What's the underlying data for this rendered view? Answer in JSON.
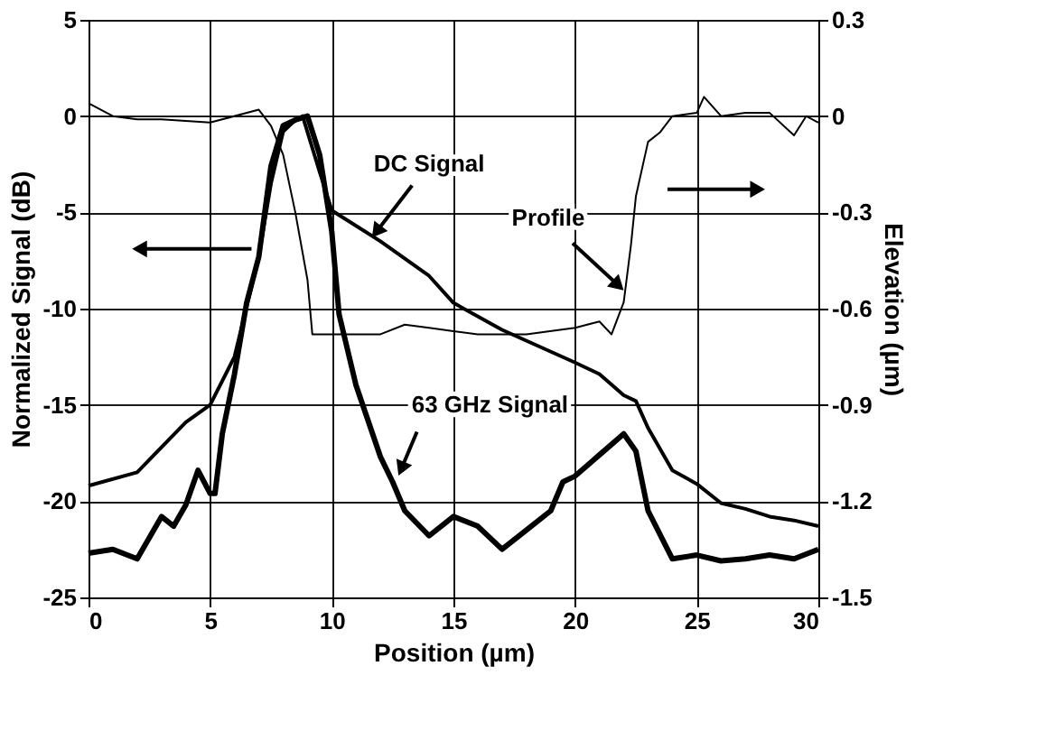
{
  "chart_data": {
    "type": "line",
    "xlabel": "Position (µm)",
    "ylabel": "Normalized Signal (dB)",
    "y2label": "Elevation (µm)",
    "xlim": [
      0,
      30
    ],
    "xticks": [
      0,
      5,
      10,
      15,
      20,
      25,
      30
    ],
    "ylim": [
      -25,
      5
    ],
    "yticks": [
      -25,
      -20,
      -15,
      -10,
      -5,
      0,
      5
    ],
    "y2lim": [
      -1.5,
      0.3
    ],
    "y2ticks": [
      -1.5,
      -1.2,
      -0.9,
      -0.6,
      -0.3,
      0,
      0.3
    ],
    "grid": true,
    "marker": "none",
    "line_style": "solid",
    "annotations": [
      {
        "text": "DC Signal",
        "x": 11.9,
        "y": -5.9
      },
      {
        "text": "Profile",
        "x": 21.7,
        "y": -8.7
      },
      {
        "text": "63 GHz Signal",
        "x": 12.9,
        "y": -18.2
      }
    ],
    "series": [
      {
        "color": "#000000",
        "x": [
          0,
          2,
          4,
          5,
          6,
          7,
          7.5,
          8,
          8.5,
          8.8,
          9.5,
          10,
          12,
          14,
          15,
          17,
          20,
          21,
          22,
          22.5,
          23,
          24,
          25,
          26,
          27,
          28,
          29,
          30
        ],
        "values": [
          -19.2,
          -18.5,
          -15.9,
          -15,
          -12.5,
          -7.3,
          -3.5,
          -0.8,
          -0.2,
          0,
          -2.9,
          -4.9,
          -6.5,
          -8.3,
          -9.7,
          -11.1,
          -12.8,
          -13.4,
          -14.5,
          -14.8,
          -16.2,
          -18.4,
          -19.1,
          -20.1,
          -20.4,
          -20.8,
          -21,
          -21.3
        ]
      },
      {
        "color": "#000000",
        "x": [
          0,
          1,
          2,
          3,
          3.5,
          4,
          4.5,
          5,
          5.2,
          5.5,
          6,
          6.5,
          7,
          7.5,
          8,
          8.5,
          9,
          9.5,
          10,
          10.3,
          11,
          12,
          12.5,
          13,
          14,
          15,
          16,
          17,
          18,
          19,
          19.5,
          20,
          21,
          22,
          22.5,
          23,
          24,
          25,
          26,
          27,
          28,
          29,
          30
        ],
        "values": [
          -22.7,
          -22.5,
          -23,
          -20.8,
          -21.3,
          -20.2,
          -18.4,
          -19.6,
          -19.6,
          -16.5,
          -13.4,
          -9.7,
          -7.3,
          -2.6,
          -0.5,
          -0.2,
          0,
          -2,
          -6,
          -10.3,
          -14,
          -17.7,
          -19,
          -20.5,
          -21.8,
          -20.8,
          -21.3,
          -22.5,
          -21.5,
          -20.5,
          -19,
          -18.7,
          -17.6,
          -16.5,
          -17.4,
          -20.5,
          -23,
          -22.8,
          -23.1,
          -23,
          -22.8,
          -23,
          -22.5
        ]
      },
      {
        "color": "#000000",
        "axis": "y2",
        "x": [
          0,
          1,
          2,
          3,
          5,
          7,
          7.5,
          8,
          8.5,
          9,
          9.2,
          10,
          11,
          12,
          13,
          14,
          15,
          16,
          18,
          20,
          21,
          21.5,
          22,
          22.3,
          22.5,
          23,
          23.5,
          24,
          25,
          25.3,
          26,
          27,
          28,
          29,
          29.5,
          30
        ],
        "values": [
          0.04,
          0,
          -0.01,
          -0.01,
          -0.02,
          0.02,
          -0.03,
          -0.12,
          -0.3,
          -0.51,
          -0.68,
          -0.68,
          -0.68,
          -0.68,
          -0.65,
          -0.66,
          -0.67,
          -0.68,
          -0.68,
          -0.66,
          -0.64,
          -0.68,
          -0.58,
          -0.4,
          -0.25,
          -0.08,
          -0.05,
          0,
          0.01,
          0.06,
          0,
          0.01,
          0.01,
          -0.06,
          0,
          -0.02
        ]
      }
    ]
  }
}
